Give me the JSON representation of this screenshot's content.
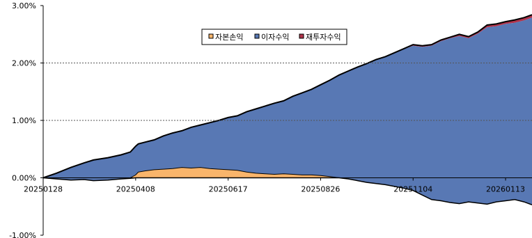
{
  "chart_data": {
    "type": "area",
    "stacked": true,
    "ylim": [
      -1.0,
      3.0
    ],
    "y_unit": "%",
    "yticks": [
      3.0,
      2.0,
      1.0,
      0.0,
      -1.0
    ],
    "ytick_labels": [
      "3.00%",
      "2.00%",
      "1.00%",
      "0.00%",
      "-1.00%"
    ],
    "x_range": [
      "20250128",
      "20260202"
    ],
    "xtick_labels": [
      "20250128",
      "20250408",
      "20250617",
      "20250826",
      "20251104",
      "20260113"
    ],
    "grid": "horizontal-dotted",
    "legend_position": "top-center",
    "colors": {
      "capital": "#F9B56B",
      "interest": "#5878B4",
      "reinvest": "#B0334A",
      "outline": "#000000",
      "grid": "#555555"
    },
    "series": [
      {
        "name": "자본손익",
        "key": "capital",
        "points": [
          [
            "20250128",
            0.0
          ],
          [
            "20250207",
            -0.02
          ],
          [
            "20250218",
            -0.04
          ],
          [
            "20250228",
            -0.03
          ],
          [
            "20250307",
            -0.05
          ],
          [
            "20250318",
            -0.04
          ],
          [
            "20250328",
            -0.02
          ],
          [
            "20250404",
            -0.01
          ],
          [
            "20250408",
            0.05
          ],
          [
            "20250410",
            0.1
          ],
          [
            "20250415",
            0.12
          ],
          [
            "20250422",
            0.14
          ],
          [
            "20250429",
            0.15
          ],
          [
            "20250506",
            0.16
          ],
          [
            "20250513",
            0.18
          ],
          [
            "20250520",
            0.17
          ],
          [
            "20250527",
            0.18
          ],
          [
            "20250603",
            0.16
          ],
          [
            "20250610",
            0.15
          ],
          [
            "20250617",
            0.14
          ],
          [
            "20250624",
            0.13
          ],
          [
            "20250701",
            0.1
          ],
          [
            "20250708",
            0.08
          ],
          [
            "20250715",
            0.07
          ],
          [
            "20250722",
            0.06
          ],
          [
            "20250729",
            0.07
          ],
          [
            "20250805",
            0.06
          ],
          [
            "20250812",
            0.05
          ],
          [
            "20250819",
            0.05
          ],
          [
            "20250826",
            0.04
          ],
          [
            "20250902",
            0.02
          ],
          [
            "20250909",
            0.0
          ],
          [
            "20250916",
            -0.02
          ],
          [
            "20250923",
            -0.05
          ],
          [
            "20250930",
            -0.08
          ],
          [
            "20251007",
            -0.1
          ],
          [
            "20251014",
            -0.12
          ],
          [
            "20251021",
            -0.15
          ],
          [
            "20251028",
            -0.18
          ],
          [
            "20251104",
            -0.22
          ],
          [
            "20251111",
            -0.3
          ],
          [
            "20251118",
            -0.38
          ],
          [
            "20251125",
            -0.4
          ],
          [
            "20251202",
            -0.43
          ],
          [
            "20251209",
            -0.45
          ],
          [
            "20251216",
            -0.42
          ],
          [
            "20251223",
            -0.44
          ],
          [
            "20251230",
            -0.46
          ],
          [
            "20260106",
            -0.42
          ],
          [
            "20260113",
            -0.4
          ],
          [
            "20260120",
            -0.38
          ],
          [
            "20260127",
            -0.42
          ],
          [
            "20260202",
            -0.47
          ]
        ]
      },
      {
        "name": "이자수익",
        "key": "interest",
        "points": [
          [
            "20250128",
            0.0
          ],
          [
            "20250207",
            0.08
          ],
          [
            "20250218",
            0.18
          ],
          [
            "20250228",
            0.26
          ],
          [
            "20250307",
            0.31
          ],
          [
            "20250318",
            0.35
          ],
          [
            "20250328",
            0.4
          ],
          [
            "20250404",
            0.45
          ],
          [
            "20250408",
            0.55
          ],
          [
            "20250410",
            0.59
          ],
          [
            "20250415",
            0.62
          ],
          [
            "20250422",
            0.66
          ],
          [
            "20250429",
            0.73
          ],
          [
            "20250506",
            0.78
          ],
          [
            "20250513",
            0.82
          ],
          [
            "20250520",
            0.88
          ],
          [
            "20250527",
            0.92
          ],
          [
            "20250603",
            0.96
          ],
          [
            "20250610",
            1.0
          ],
          [
            "20250617",
            1.05
          ],
          [
            "20250624",
            1.08
          ],
          [
            "20250701",
            1.15
          ],
          [
            "20250708",
            1.2
          ],
          [
            "20250715",
            1.25
          ],
          [
            "20250722",
            1.3
          ],
          [
            "20250729",
            1.34
          ],
          [
            "20250805",
            1.42
          ],
          [
            "20250812",
            1.48
          ],
          [
            "20250819",
            1.54
          ],
          [
            "20250826",
            1.62
          ],
          [
            "20250902",
            1.7
          ],
          [
            "20250909",
            1.79
          ],
          [
            "20250916",
            1.86
          ],
          [
            "20250923",
            1.93
          ],
          [
            "20250930",
            1.99
          ],
          [
            "20251007",
            2.05
          ],
          [
            "20251014",
            2.1
          ],
          [
            "20251021",
            2.17
          ],
          [
            "20251028",
            2.24
          ],
          [
            "20251104",
            2.3
          ],
          [
            "20251111",
            2.28
          ],
          [
            "20251118",
            2.3
          ],
          [
            "20251125",
            2.38
          ],
          [
            "20251202",
            2.43
          ],
          [
            "20251209",
            2.47
          ],
          [
            "20251216",
            2.43
          ],
          [
            "20251223",
            2.51
          ],
          [
            "20251230",
            2.62
          ],
          [
            "20260106",
            2.64
          ],
          [
            "20260113",
            2.68
          ],
          [
            "20260120",
            2.7
          ],
          [
            "20260127",
            2.74
          ],
          [
            "20260202",
            2.79
          ]
        ]
      },
      {
        "name": "재투자수익",
        "key": "reinvest",
        "points": [
          [
            "20250128",
            0.0
          ],
          [
            "20250207",
            0.0
          ],
          [
            "20250218",
            0.0
          ],
          [
            "20250228",
            0.0
          ],
          [
            "20250307",
            0.0
          ],
          [
            "20250318",
            0.0
          ],
          [
            "20250328",
            0.0
          ],
          [
            "20250404",
            0.0
          ],
          [
            "20250408",
            0.0
          ],
          [
            "20250410",
            0.0
          ],
          [
            "20250415",
            0.0
          ],
          [
            "20250422",
            0.0
          ],
          [
            "20250429",
            0.0
          ],
          [
            "20250506",
            0.0
          ],
          [
            "20250513",
            0.0
          ],
          [
            "20250520",
            0.0
          ],
          [
            "20250527",
            0.0
          ],
          [
            "20250603",
            0.0
          ],
          [
            "20250610",
            0.0
          ],
          [
            "20250617",
            0.0
          ],
          [
            "20250624",
            0.0
          ],
          [
            "20250701",
            0.0
          ],
          [
            "20250708",
            0.0
          ],
          [
            "20250715",
            0.0
          ],
          [
            "20250722",
            0.0
          ],
          [
            "20250729",
            0.0
          ],
          [
            "20250805",
            0.0
          ],
          [
            "20250812",
            0.0
          ],
          [
            "20250819",
            0.0
          ],
          [
            "20250826",
            0.0
          ],
          [
            "20250902",
            0.0
          ],
          [
            "20250909",
            0.0
          ],
          [
            "20250916",
            0.0
          ],
          [
            "20250923",
            0.0
          ],
          [
            "20250930",
            0.0
          ],
          [
            "20251007",
            0.01
          ],
          [
            "20251014",
            0.01
          ],
          [
            "20251021",
            0.01
          ],
          [
            "20251028",
            0.01
          ],
          [
            "20251104",
            0.02
          ],
          [
            "20251111",
            0.02
          ],
          [
            "20251118",
            0.02
          ],
          [
            "20251125",
            0.02
          ],
          [
            "20251202",
            0.02
          ],
          [
            "20251209",
            0.03
          ],
          [
            "20251216",
            0.03
          ],
          [
            "20251223",
            0.03
          ],
          [
            "20251230",
            0.04
          ],
          [
            "20260106",
            0.04
          ],
          [
            "20260113",
            0.04
          ],
          [
            "20260120",
            0.05
          ],
          [
            "20260127",
            0.05
          ],
          [
            "20260202",
            0.05
          ]
        ]
      }
    ]
  }
}
